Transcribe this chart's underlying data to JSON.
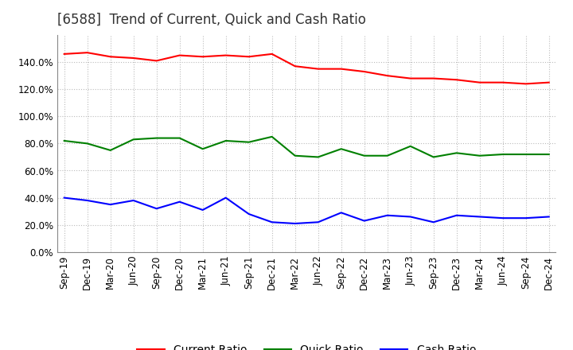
{
  "title": "[6588]  Trend of Current, Quick and Cash Ratio",
  "x_labels": [
    "Sep-19",
    "Dec-19",
    "Mar-20",
    "Jun-20",
    "Sep-20",
    "Dec-20",
    "Mar-21",
    "Jun-21",
    "Sep-21",
    "Dec-21",
    "Mar-22",
    "Jun-22",
    "Sep-22",
    "Dec-22",
    "Mar-23",
    "Jun-23",
    "Sep-23",
    "Dec-23",
    "Mar-24",
    "Jun-24",
    "Sep-24",
    "Dec-24"
  ],
  "current_ratio": [
    1.46,
    1.47,
    1.44,
    1.43,
    1.41,
    1.45,
    1.44,
    1.45,
    1.44,
    1.46,
    1.37,
    1.35,
    1.35,
    1.33,
    1.3,
    1.28,
    1.28,
    1.27,
    1.25,
    1.25,
    1.24
  ],
  "quick_ratio": [
    0.82,
    0.8,
    0.75,
    0.83,
    0.84,
    0.84,
    0.76,
    0.82,
    0.81,
    0.85,
    0.71,
    0.7,
    0.76,
    0.71,
    0.71,
    0.78,
    0.7,
    0.73,
    0.71,
    0.72,
    0.72
  ],
  "cash_ratio": [
    0.4,
    0.38,
    0.35,
    0.38,
    0.32,
    0.37,
    0.31,
    0.4,
    0.28,
    0.22,
    0.21,
    0.22,
    0.29,
    0.23,
    0.27,
    0.26,
    0.22,
    0.27,
    0.26,
    0.25,
    0.25
  ],
  "current_ratio_full": [
    1.46,
    1.47,
    1.44,
    1.43,
    1.41,
    1.45,
    1.44,
    1.45,
    1.44,
    1.46,
    1.37,
    1.35,
    1.35,
    1.33,
    1.3,
    1.28,
    1.28,
    1.27,
    1.25,
    1.25,
    1.24,
    1.25
  ],
  "quick_ratio_full": [
    0.82,
    0.8,
    0.75,
    0.83,
    0.84,
    0.84,
    0.76,
    0.82,
    0.81,
    0.85,
    0.71,
    0.7,
    0.76,
    0.71,
    0.71,
    0.78,
    0.7,
    0.73,
    0.71,
    0.72,
    0.72,
    0.72
  ],
  "cash_ratio_full": [
    0.4,
    0.38,
    0.35,
    0.38,
    0.32,
    0.37,
    0.31,
    0.4,
    0.28,
    0.22,
    0.21,
    0.22,
    0.29,
    0.23,
    0.27,
    0.26,
    0.22,
    0.27,
    0.26,
    0.25,
    0.25,
    0.26
  ],
  "current_color": "#FF0000",
  "quick_color": "#008000",
  "cash_color": "#0000FF",
  "bg_color": "#FFFFFF",
  "plot_bg_color": "#FFFFFF",
  "grid_color": "#BBBBBB",
  "ylim": [
    0.0,
    1.6
  ],
  "yticks": [
    0.0,
    0.2,
    0.4,
    0.6,
    0.8,
    1.0,
    1.2,
    1.4
  ],
  "title_fontsize": 12,
  "legend_fontsize": 10,
  "tick_fontsize": 8.5
}
